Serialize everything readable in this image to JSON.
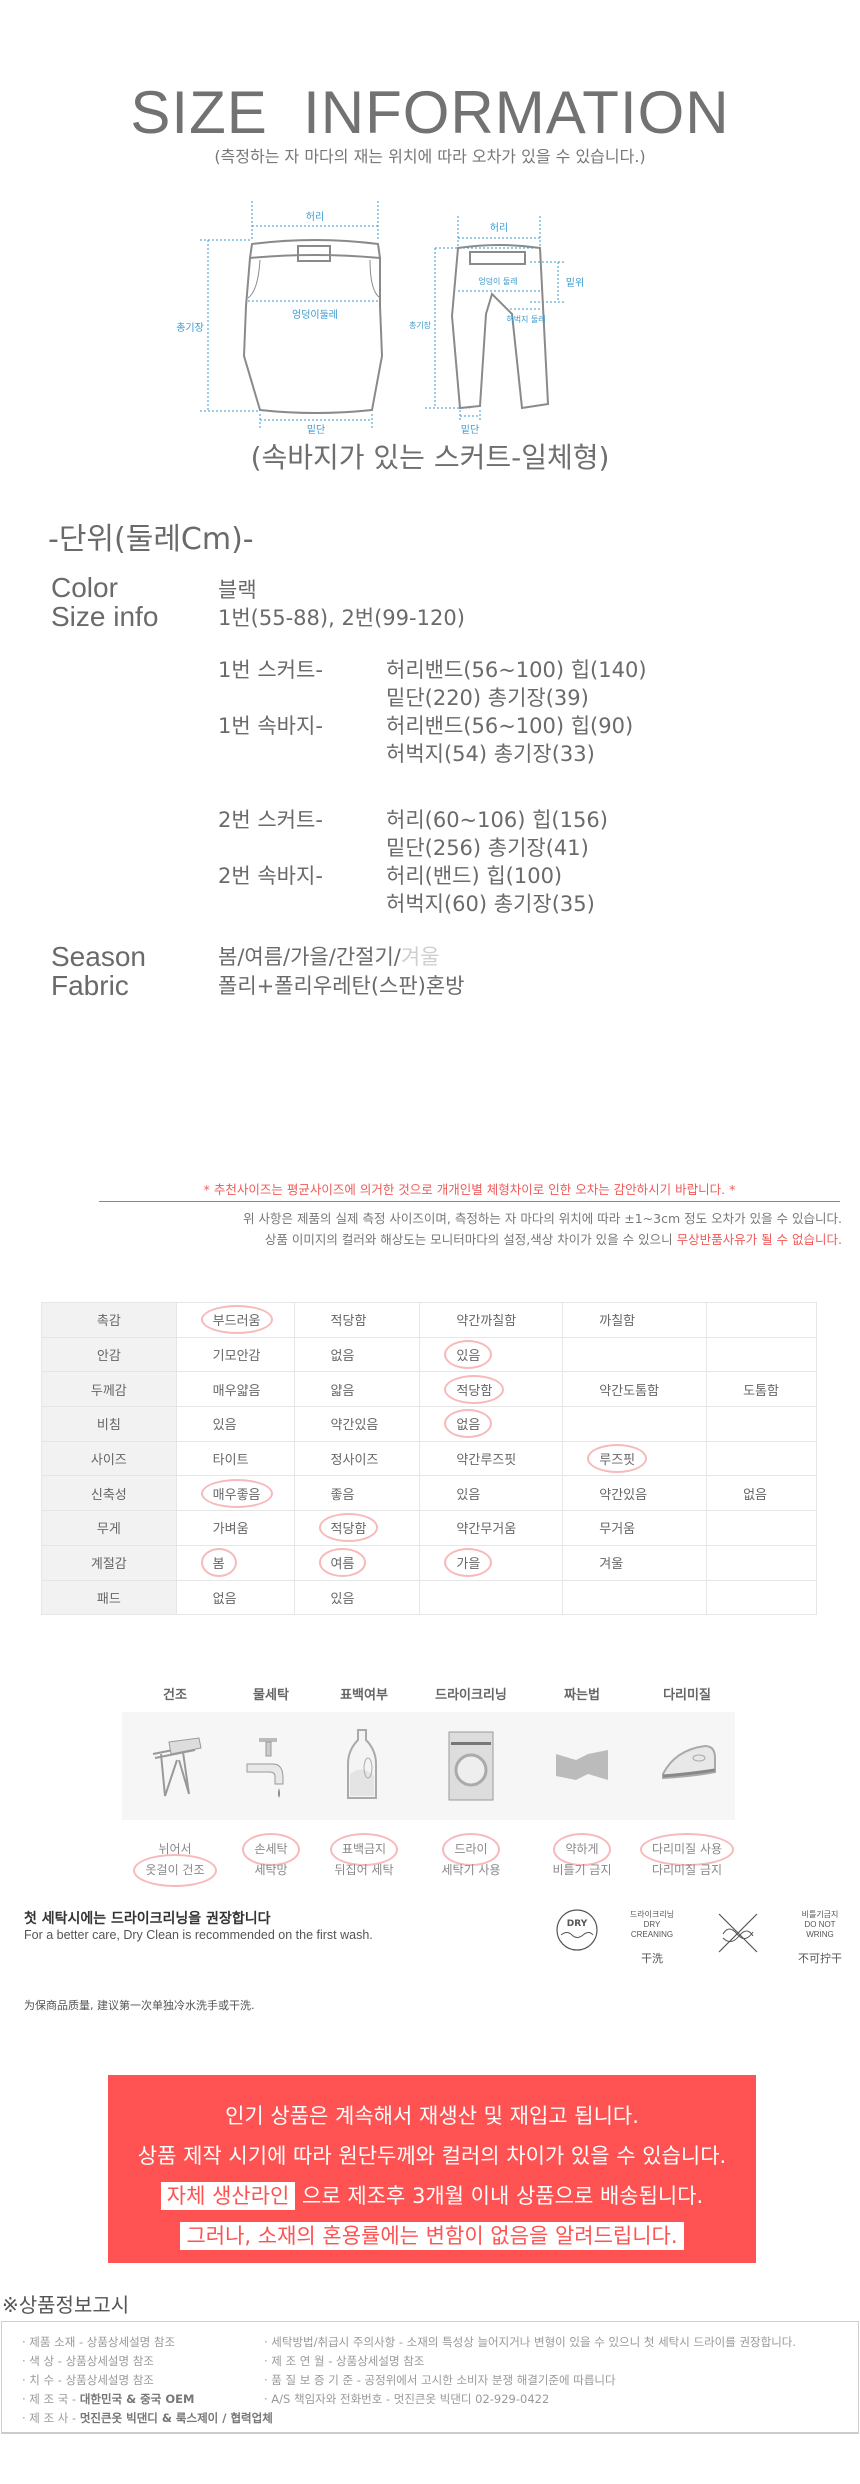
{
  "header": {
    "title": "SIZE  INFORMATION",
    "subtitle": "(측정하는 자 마다의  재는 위치에 따라 오차가 있을 수 있습니다.)",
    "caption": "(속바지가 있는 스커트-일체형)",
    "skirt_labels": {
      "waist": "허리",
      "length": "총기장",
      "hip": "엉덩이둘레",
      "hem": "밑단"
    },
    "pants_labels": {
      "waist": "허리",
      "rise": "밑위",
      "hip": "엉덩이 둘레",
      "thigh": "허벅지 둘레",
      "length": "총기장",
      "hem": "밑단"
    },
    "diagram_color": "#3a9ad0"
  },
  "specs": {
    "unit": "-단위(둘레Cm)-",
    "color_label": "Color",
    "color_value": "블랙",
    "size_label": "Size info",
    "size_value": "1번(55-88), 2번(99-120)",
    "groups": [
      {
        "label": "1번 스커트-",
        "lines": [
          "허리밴드(56~100) 힙(140)",
          "밑단(220) 총기장(39)"
        ]
      },
      {
        "label": "1번 속바지-",
        "lines": [
          "허리밴드(56~100) 힙(90)",
          "허벅지(54) 총기장(33)"
        ]
      },
      {
        "label": "2번 스커트-",
        "lines": [
          "허리(60~106) 힙(156)",
          "밑단(256) 총기장(41)"
        ]
      },
      {
        "label": "2번 속바지-",
        "lines": [
          "허리(밴드) 힙(100)",
          "허벅지(60) 총기장(35)"
        ]
      }
    ],
    "season_label": "Season",
    "season_value": "봄/여름/가을/간절기/",
    "season_inactive": "겨울",
    "fabric_label": "Fabric",
    "fabric_value": "폴리+폴리우레탄(스판)혼방"
  },
  "notice": {
    "red": "* 추천사이즈는 평균사이즈에 의거한 것으로 개개인별 체형차이로 인한 오차는 감안하시기 바랍니다. *",
    "gray1": "위 사항은 제품의 실제 측정 사이즈이며, 측정하는 자 마다의 위치에 따라 ±1~3cm 정도 오차가 있을 수 있습니다.",
    "gray2": "상품 이미지의 컬러와 해상도는 모니터마다의 설정,색상 차이가 있을 수 있으니 ",
    "gray2_red": "무상반품사유가 될 수 없습니다."
  },
  "fit_table": [
    {
      "label": "촉감",
      "cells": [
        {
          "t": "부드러움",
          "c": true
        },
        {
          "t": "적당함"
        },
        {
          "t": "약간까칠함"
        },
        {
          "t": "까칠함"
        },
        {
          "t": ""
        }
      ]
    },
    {
      "label": "안감",
      "cells": [
        {
          "t": "기모안감"
        },
        {
          "t": "없음"
        },
        {
          "t": "있음",
          "c": true
        },
        {
          "t": ""
        },
        {
          "t": ""
        }
      ]
    },
    {
      "label": "두께감",
      "cells": [
        {
          "t": "매우얇음"
        },
        {
          "t": "얇음"
        },
        {
          "t": "적당함",
          "c": true
        },
        {
          "t": "약간도톰함"
        },
        {
          "t": "도톰함"
        }
      ]
    },
    {
      "label": "비침",
      "cells": [
        {
          "t": "있음"
        },
        {
          "t": "약간있음"
        },
        {
          "t": "없음",
          "c": true
        },
        {
          "t": ""
        },
        {
          "t": ""
        }
      ]
    },
    {
      "label": "사이즈",
      "cells": [
        {
          "t": "타이트"
        },
        {
          "t": "정사이즈"
        },
        {
          "t": "약간루즈핏"
        },
        {
          "t": "루즈핏",
          "c": true
        },
        {
          "t": ""
        }
      ]
    },
    {
      "label": "신축성",
      "cells": [
        {
          "t": "매우좋음",
          "c": true
        },
        {
          "t": "좋음"
        },
        {
          "t": "있음"
        },
        {
          "t": "약간있음"
        },
        {
          "t": "없음"
        }
      ]
    },
    {
      "label": "무게",
      "cells": [
        {
          "t": "가벼움"
        },
        {
          "t": "적당함",
          "c": true
        },
        {
          "t": "약간무거움"
        },
        {
          "t": "무거움"
        },
        {
          "t": ""
        }
      ]
    },
    {
      "label": "계절감",
      "cells": [
        {
          "t": "봄",
          "c": true
        },
        {
          "t": "여름",
          "c": true
        },
        {
          "t": "가을",
          "c": true
        },
        {
          "t": "겨울"
        },
        {
          "t": ""
        }
      ]
    },
    {
      "label": "패드",
      "cells": [
        {
          "t": "없음"
        },
        {
          "t": "있음"
        },
        {
          "t": ""
        },
        {
          "t": ""
        },
        {
          "t": ""
        }
      ]
    }
  ],
  "care": [
    {
      "header": "건조",
      "icon": "drying-rack-icon",
      "lines": [
        {
          "t": "뉘어서"
        },
        {
          "t": "옷걸이 건조",
          "c": true
        }
      ]
    },
    {
      "header": "물세탁",
      "icon": "faucet-icon",
      "lines": [
        {
          "t": "손세탁",
          "c": true
        },
        {
          "t": "세탁망"
        }
      ]
    },
    {
      "header": "표백여부",
      "icon": "detergent-bottle-icon",
      "lines": [
        {
          "t": "표백금지",
          "c": true
        },
        {
          "t": "뒤집어 세탁"
        }
      ]
    },
    {
      "header": "드라이크리닝",
      "icon": "washing-machine-icon",
      "lines": [
        {
          "t": "드라이",
          "c": true
        },
        {
          "t": "세탁기 사용"
        }
      ]
    },
    {
      "header": "짜는법",
      "icon": "wring-icon",
      "lines": [
        {
          "t": "약하게",
          "c": true
        },
        {
          "t": "비틀기 금지"
        }
      ]
    },
    {
      "header": "다리미질",
      "icon": "iron-icon",
      "lines": [
        {
          "t": "다리미질 사용",
          "c": true
        },
        {
          "t": "다리미질 금지"
        }
      ]
    }
  ],
  "dryclean": {
    "heading": "첫 세탁시에는 드라이크리닝을 권장합니다",
    "english": "For a better care, Dry Clean is recommended on the first wash.",
    "chinese": "为保商品质量, 建议第一次单独冷水洗手或干洗.",
    "dry_badge": "DRY",
    "dry_kr": "드라이크리닝",
    "dry_en1": "DRY",
    "dry_en2": "CREANING",
    "dry_cn": "干洗",
    "wring_kr": "비틀기금지",
    "wring_en1": "DO NOT",
    "wring_en2": "WRING",
    "wring_cn": "不可拧干"
  },
  "banner": {
    "line1": "인기 상품은 계속해서 재생산 및 재입고 됩니다.",
    "line2": "상품 제작 시기에 따라 원단두께와 컬러의 차이가 있을 수 있습니다.",
    "line3_hl": "자체 생산라인",
    "line3": " 으로 제조후 3개월 이내 상품으로 배송됩니다.",
    "line4": "그러나, 소재의 혼용률에는 변함이 없음을 알려드립니다.",
    "color": "#ff5252"
  },
  "product_info": {
    "title": "※상품정보고시",
    "left": [
      {
        "k": "· 제품 소재 - ",
        "v": "상품상세설명 참조"
      },
      {
        "k": "· 색          상 - ",
        "v": "상품상세설명 참조"
      },
      {
        "k": "· 치          수 - ",
        "v": "상품상세설명 참조"
      },
      {
        "k": "· 제   조   국 - ",
        "v": "대한민국 & 중국 OEM",
        "b": true
      },
      {
        "k": "· 제   조   사 - ",
        "v": "멋진큰옷 빅댄디 & 룩스제이 / 협력업체",
        "b": true
      }
    ],
    "right": [
      "· 세탁방법/취급시 주의사항 - 소재의 특성상 늘어지거나 변형이 있을 수 있으니 첫 세탁시 드라이를 권장합니다.",
      "· 제        조        연        월 - 상품상세설명 참조",
      "· 품    질    보    증    기    준 - 공정위에서 고시한 소비자 분쟁 해결기준에 따릅니다",
      "· A/S 책임자와 전화번호 - 멋진큰옷 빅댄디 02-929-0422"
    ]
  }
}
